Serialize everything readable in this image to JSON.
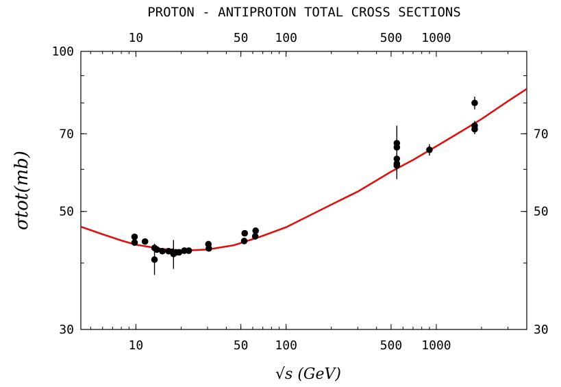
{
  "chart_data": {
    "type": "scatter",
    "title": "PROTON - ANTIPROTON TOTAL CROSS SECTIONS",
    "xlabel": "√s (GeV)",
    "ylabel": "σtot(mb)",
    "x_scale": "log",
    "y_scale": "log",
    "xlim": [
      4.3,
      4000
    ],
    "ylim": [
      30,
      100
    ],
    "x_ticks": [
      10,
      50,
      100,
      500,
      1000
    ],
    "x_tick_labels": [
      "10",
      "50",
      "100",
      "500",
      "1000"
    ],
    "y_ticks": [
      30,
      50,
      70,
      100
    ],
    "y_tick_labels": [
      "30",
      "50",
      "70",
      "100"
    ],
    "y_ticks_right": [
      30,
      50,
      70
    ],
    "y_ticks_right_labels": [
      "30",
      "50",
      "70"
    ],
    "grid": false,
    "legend": "none",
    "series": [
      {
        "kind": "points",
        "color": "#000000",
        "points": [
          {
            "x": 9.8,
            "y": 44.8,
            "err": 0
          },
          {
            "x": 9.8,
            "y": 43.7,
            "err": 0
          },
          {
            "x": 11.5,
            "y": 43.9,
            "err": 0
          },
          {
            "x": 13.3,
            "y": 42.7,
            "err": 0.8
          },
          {
            "x": 13.3,
            "y": 40.6,
            "err": 2.6
          },
          {
            "x": 13.8,
            "y": 42.4,
            "err": 0
          },
          {
            "x": 15.0,
            "y": 42.1,
            "err": 0
          },
          {
            "x": 16.5,
            "y": 42.1,
            "err": 0
          },
          {
            "x": 17.5,
            "y": 42.0,
            "err": 0
          },
          {
            "x": 17.8,
            "y": 41.6,
            "err": 2.6
          },
          {
            "x": 18.5,
            "y": 41.9,
            "err": 0
          },
          {
            "x": 19.4,
            "y": 41.9,
            "err": 0
          },
          {
            "x": 21.0,
            "y": 42.2,
            "err": 0
          },
          {
            "x": 22.5,
            "y": 42.2,
            "err": 0
          },
          {
            "x": 30.4,
            "y": 43.4,
            "err": 0
          },
          {
            "x": 30.6,
            "y": 42.6,
            "err": 0
          },
          {
            "x": 52.6,
            "y": 44.0,
            "err": 0
          },
          {
            "x": 53.0,
            "y": 45.5,
            "err": 0
          },
          {
            "x": 62.3,
            "y": 44.9,
            "err": 0
          },
          {
            "x": 62.7,
            "y": 46.0,
            "err": 0
          },
          {
            "x": 546,
            "y": 66.0,
            "err": 6.5
          },
          {
            "x": 546,
            "y": 67.2,
            "err": 0
          },
          {
            "x": 546,
            "y": 62.8,
            "err": 0
          },
          {
            "x": 546,
            "y": 61.5,
            "err": 0
          },
          {
            "x": 546,
            "y": 61.0,
            "err": 3.5
          },
          {
            "x": 900,
            "y": 65.3,
            "err": 1.6
          },
          {
            "x": 1800,
            "y": 80.0,
            "err": 2.2
          },
          {
            "x": 1800,
            "y": 72.5,
            "err": 1.5
          },
          {
            "x": 1800,
            "y": 71.4,
            "err": 1.5
          }
        ]
      },
      {
        "kind": "fit-curve",
        "color": "#e01010",
        "curve": [
          {
            "x": 4.3,
            "y": 46.8
          },
          {
            "x": 6,
            "y": 45.3
          },
          {
            "x": 8,
            "y": 44.1
          },
          {
            "x": 10,
            "y": 43.3
          },
          {
            "x": 15,
            "y": 42.5
          },
          {
            "x": 20,
            "y": 42.2
          },
          {
            "x": 30,
            "y": 42.4
          },
          {
            "x": 45,
            "y": 43.2
          },
          {
            "x": 70,
            "y": 45.0
          },
          {
            "x": 100,
            "y": 46.7
          },
          {
            "x": 200,
            "y": 51.5
          },
          {
            "x": 300,
            "y": 54.5
          },
          {
            "x": 500,
            "y": 59.4
          },
          {
            "x": 700,
            "y": 62.5
          },
          {
            "x": 1000,
            "y": 66.3
          },
          {
            "x": 1500,
            "y": 71.0
          },
          {
            "x": 2000,
            "y": 74.6
          },
          {
            "x": 3000,
            "y": 80.6
          },
          {
            "x": 4000,
            "y": 85.0
          }
        ]
      }
    ]
  }
}
